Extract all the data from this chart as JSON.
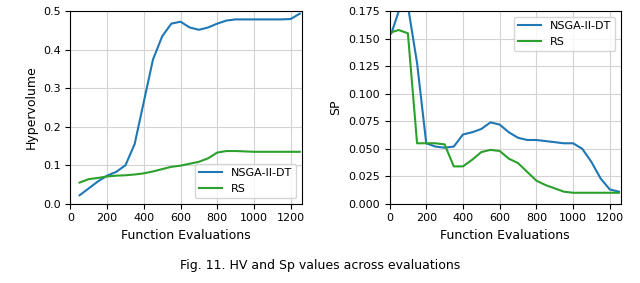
{
  "hv_x": [
    50,
    100,
    150,
    200,
    250,
    300,
    350,
    400,
    450,
    500,
    550,
    600,
    650,
    700,
    750,
    800,
    850,
    900,
    950,
    1000,
    1050,
    1100,
    1150,
    1200,
    1250
  ],
  "hv_nsga": [
    0.022,
    0.04,
    0.058,
    0.073,
    0.083,
    0.1,
    0.155,
    0.265,
    0.375,
    0.435,
    0.468,
    0.473,
    0.458,
    0.452,
    0.458,
    0.468,
    0.476,
    0.479,
    0.479,
    0.479,
    0.479,
    0.479,
    0.479,
    0.48,
    0.494
  ],
  "hv_rs": [
    0.055,
    0.064,
    0.067,
    0.071,
    0.073,
    0.074,
    0.076,
    0.079,
    0.084,
    0.09,
    0.096,
    0.099,
    0.104,
    0.109,
    0.118,
    0.133,
    0.137,
    0.137,
    0.136,
    0.135,
    0.135,
    0.135,
    0.135,
    0.135,
    0.135
  ],
  "sp_x": [
    10,
    50,
    100,
    150,
    200,
    250,
    300,
    350,
    400,
    450,
    500,
    550,
    600,
    650,
    700,
    750,
    800,
    850,
    900,
    950,
    1000,
    1050,
    1100,
    1150,
    1200,
    1250
  ],
  "sp_nsga": [
    0.155,
    0.175,
    0.18,
    0.128,
    0.055,
    0.052,
    0.051,
    0.052,
    0.063,
    0.065,
    0.068,
    0.074,
    0.072,
    0.065,
    0.06,
    0.058,
    0.058,
    0.057,
    0.056,
    0.055,
    0.055,
    0.05,
    0.038,
    0.023,
    0.013,
    0.011
  ],
  "sp_rs": [
    0.156,
    0.158,
    0.155,
    0.055,
    0.055,
    0.055,
    0.054,
    0.034,
    0.034,
    0.04,
    0.047,
    0.049,
    0.048,
    0.041,
    0.037,
    0.029,
    0.021,
    0.017,
    0.014,
    0.011,
    0.01,
    0.01,
    0.01,
    0.01,
    0.01,
    0.01
  ],
  "blue_color": "#1f77b4",
  "green_color": "#2ca02c",
  "xlabel": "Function Evaluations",
  "hv_ylabel": "Hypervolume",
  "sp_ylabel": "SP",
  "legend_nsga": "NSGA-II-DT",
  "legend_rs": "RS",
  "caption": "Fig. 11. HV and Sp values across evaluations",
  "hv_ylim": [
    0.0,
    0.5
  ],
  "sp_ylim": [
    0.0,
    0.175
  ],
  "hv_xlim": [
    0,
    1260
  ],
  "sp_xlim": [
    0,
    1260
  ]
}
